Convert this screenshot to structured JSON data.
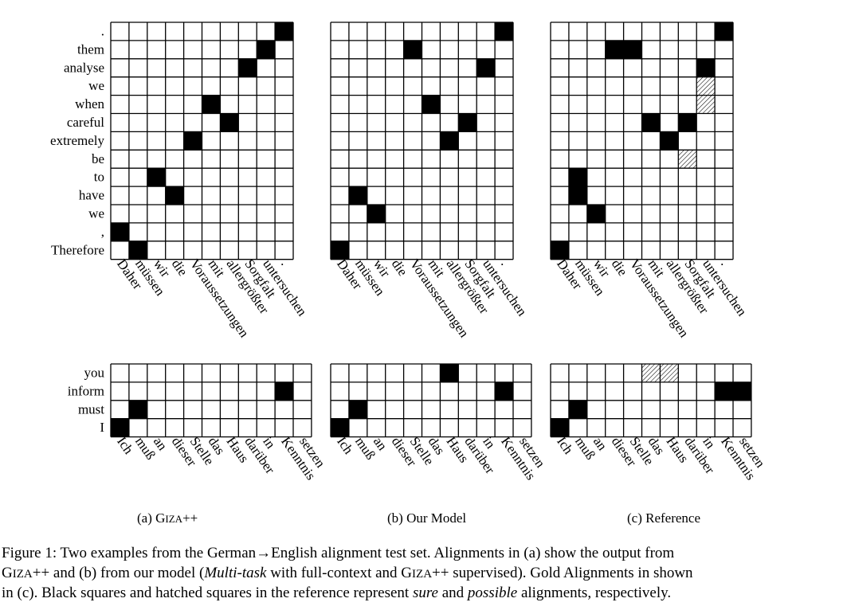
{
  "examples": [
    {
      "source": [
        "Daher",
        "müssen",
        "wir",
        "die",
        "Voraussetzungen",
        "mit",
        "allergrößter",
        "Sorgfalt",
        "untersuchen",
        "."
      ],
      "target": [
        ".",
        "them",
        "analyse",
        "we",
        "when",
        "careful",
        "extremely",
        "be",
        "to",
        "have",
        "we",
        ",",
        "Therefore"
      ]
    },
    {
      "source": [
        "Ich",
        "muß",
        "an",
        "dieser",
        "Stelle",
        "das",
        "Haus",
        "darüber",
        "in",
        "Kenntnis",
        "setzen"
      ],
      "target": [
        "you",
        "inform",
        "must",
        "I"
      ]
    }
  ],
  "panels": [
    {
      "label_prefix": "(a) G",
      "label_sc": "IZA",
      "label_suffix": "++",
      "alignments": [
        {
          "sure": [
            [
              0,
              9
            ],
            [
              1,
              8
            ],
            [
              2,
              7
            ],
            [
              5,
              6
            ],
            [
              4,
              5
            ],
            [
              6,
              4
            ],
            [
              9,
              3
            ],
            [
              8,
              2
            ],
            [
              12,
              1
            ],
            [
              11,
              0
            ]
          ],
          "possible": []
        },
        {
          "sure": [
            [
              3,
              0
            ],
            [
              2,
              1
            ],
            [
              1,
              9
            ]
          ],
          "possible": []
        }
      ]
    },
    {
      "label_prefix": "(b) Our Model",
      "label_sc": "",
      "label_suffix": "",
      "alignments": [
        {
          "sure": [
            [
              0,
              9
            ],
            [
              1,
              4
            ],
            [
              2,
              8
            ],
            [
              4,
              5
            ],
            [
              5,
              7
            ],
            [
              6,
              6
            ],
            [
              9,
              1
            ],
            [
              10,
              2
            ],
            [
              12,
              0
            ]
          ],
          "possible": []
        },
        {
          "sure": [
            [
              3,
              0
            ],
            [
              2,
              1
            ],
            [
              1,
              9
            ],
            [
              0,
              6
            ]
          ],
          "possible": []
        }
      ]
    },
    {
      "label_prefix": "(c) Reference",
      "label_sc": "",
      "label_suffix": "",
      "alignments": [
        {
          "sure": [
            [
              0,
              9
            ],
            [
              1,
              3
            ],
            [
              1,
              4
            ],
            [
              2,
              8
            ],
            [
              5,
              5
            ],
            [
              5,
              7
            ],
            [
              6,
              6
            ],
            [
              8,
              1
            ],
            [
              9,
              1
            ],
            [
              10,
              2
            ],
            [
              12,
              0
            ]
          ],
          "possible": [
            [
              3,
              8
            ],
            [
              4,
              8
            ],
            [
              7,
              7
            ]
          ]
        },
        {
          "sure": [
            [
              3,
              0
            ],
            [
              2,
              1
            ],
            [
              1,
              9
            ],
            [
              1,
              10
            ]
          ],
          "possible": [
            [
              0,
              5
            ],
            [
              0,
              6
            ]
          ]
        }
      ]
    }
  ],
  "caption": {
    "p1": "Figure 1: Two examples from the German→English alignment test set. Alignments in (a) show the output from",
    "p2_sc": "IZA",
    "p2_a": "G",
    "p2_b": "++ and (b) from our model (",
    "p2_em": "Multi-task",
    "p2_c": " with full-context and G",
    "p2_d": "++ supervised). Gold Alignments in shown",
    "p3_a": "in (c). Black squares and hatched squares in the reference represent ",
    "p3_em1": "sure",
    "p3_b": " and ",
    "p3_em2": "possible",
    "p3_c": " alignments, respectively."
  }
}
